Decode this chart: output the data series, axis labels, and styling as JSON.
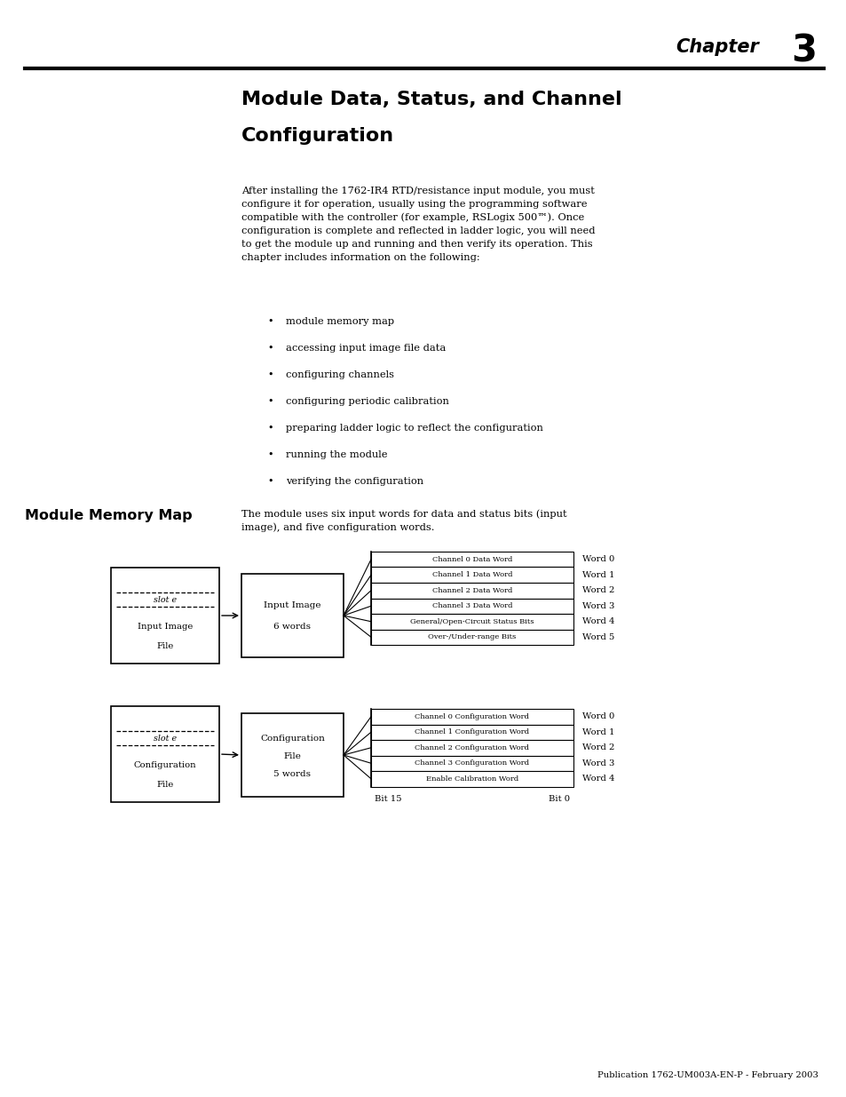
{
  "page_bg": "#ffffff",
  "chapter_label": "Chapter",
  "chapter_number": "3",
  "title_line1": "Module Data, Status, and Channel",
  "title_line2": "Configuration",
  "body_text": "After installing the 1762-IR4 RTD/resistance input module, you must\nconfigure it for operation, usually using the programming software\ncompatible with the controller (for example, RSLogix 500™). Once\nconfiguration is complete and reflected in ladder logic, you will need\nto get the module up and running and then verify its operation. This\nchapter includes information on the following:",
  "bullets": [
    "module memory map",
    "accessing input image file data",
    "configuring channels",
    "configuring periodic calibration",
    "preparing ladder logic to reflect the configuration",
    "running the module",
    "verifying the configuration"
  ],
  "sidebar_title": "Module Memory Map",
  "sidebar_body": "The module uses six input words for data and status bits (input\nimage), and five configuration words.",
  "input_rows": [
    "Channel 0 Data Word",
    "Channel 1 Data Word",
    "Channel 2 Data Word",
    "Channel 3 Data Word",
    "General/Open-Circuit Status Bits",
    "Over-/Under-range Bits"
  ],
  "input_words": [
    "Word 0",
    "Word 1",
    "Word 2",
    "Word 3",
    "Word 4",
    "Word 5"
  ],
  "config_rows": [
    "Channel 0 Configuration Word",
    "Channel 1 Configuration Word",
    "Channel 2 Configuration Word",
    "Channel 3 Configuration Word",
    "Enable Calibration Word"
  ],
  "config_words": [
    "Word 0",
    "Word 1",
    "Word 2",
    "Word 3",
    "Word 4"
  ],
  "footer_text": "Publication 1762-UM003A-EN-P - February 2003"
}
